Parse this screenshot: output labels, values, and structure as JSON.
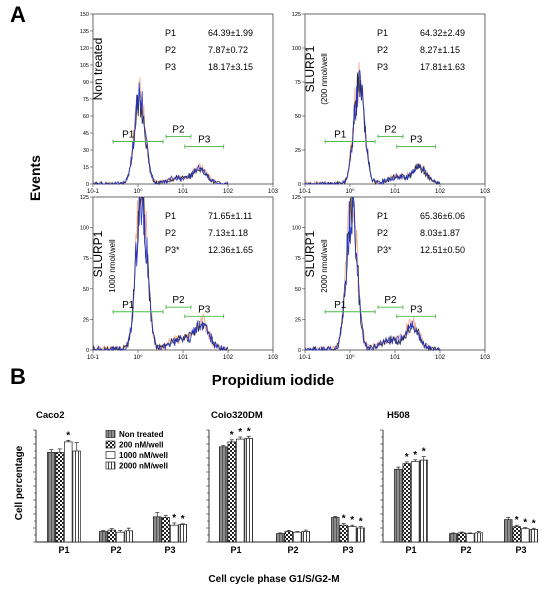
{
  "panel_labels": [
    "A",
    "B"
  ],
  "chart_data": [
    {
      "type": "line",
      "panel": "A",
      "title": "",
      "ylabel": "Events",
      "xlabel": "Propidium iodide",
      "x_scale": "log",
      "xlim": [
        0.1,
        1000
      ],
      "x_ticks": [
        "10-1",
        "10⁰",
        "101",
        "102",
        "103"
      ],
      "gates": [
        "P1",
        "P2",
        "P3"
      ],
      "histograms": [
        {
          "condition": "Non treated",
          "ylim": [
            0,
            150
          ],
          "y_ticks": [
            0,
            15,
            30,
            45,
            60,
            75,
            90,
            105,
            120,
            135,
            150
          ],
          "stats": [
            {
              "gate": "P1",
              "value": "64.39±1.99"
            },
            {
              "gate": "P2",
              "value": "7.87±0.72"
            },
            {
              "gate": "P3",
              "value": "18.17±3.15"
            }
          ],
          "peak_position": 1.1,
          "peak_height": 75
        },
        {
          "condition": "SLURP1",
          "dose": "(200 nmol/well",
          "ylim": [
            0,
            125
          ],
          "y_ticks": [
            0,
            25,
            50,
            75,
            100,
            125
          ],
          "stats": [
            {
              "gate": "P1",
              "value": "64.32±2.49"
            },
            {
              "gate": "P2",
              "value": "8.27±1.15"
            },
            {
              "gate": "P3",
              "value": "17.81±1.63"
            }
          ],
          "peak_position": 1.6,
          "peak_height": 70
        },
        {
          "condition": "SLURP1",
          "dose": "1000 nmol/well",
          "ylim": [
            0,
            125
          ],
          "y_ticks": [
            0,
            25,
            50,
            75,
            100,
            125
          ],
          "stats": [
            {
              "gate": "P1",
              "value": "71.65±1.11"
            },
            {
              "gate": "P2",
              "value": "7.13±1.18"
            },
            {
              "gate": "P3*",
              "value": "12.36±1.65"
            }
          ],
          "peak_position": 1.2,
          "peak_height": 125
        },
        {
          "condition": "SLURP1",
          "dose": "2000 nmol/well",
          "ylim": [
            0,
            125
          ],
          "y_ticks": [
            0,
            25,
            50,
            75,
            100,
            125
          ],
          "stats": [
            {
              "gate": "P1",
              "value": "65.36±6.06"
            },
            {
              "gate": "P2",
              "value": "8.03±1.87"
            },
            {
              "gate": "P3*",
              "value": "12.51±0.50"
            }
          ],
          "peak_position": 1.1,
          "peak_height": 110
        }
      ],
      "colors": {
        "blue": "#2233cc",
        "dark": "#222222",
        "peach": "#f2a27a",
        "gate": "#4cb848"
      }
    },
    {
      "type": "bar",
      "panel": "B",
      "ylabel": "Cell percentage",
      "xlabel": "Cell cycle phase G1/S/G2-M",
      "ylim": [
        0,
        80
      ],
      "categories": [
        "P1",
        "P2",
        "P3"
      ],
      "legend": [
        "Non treated",
        "200 nM/well",
        "1000 nM/well",
        "2000 nM/well"
      ],
      "legend_placement": "top-left of first plot",
      "groups": [
        {
          "name": "Caco2",
          "series": [
            {
              "name": "Non treated",
              "values": [
                64,
                7.5,
                18
              ],
              "errors": [
                2,
                0.7,
                3
              ]
            },
            {
              "name": "200 nM/well",
              "values": [
                64,
                8.5,
                17.5
              ],
              "errors": [
                2.5,
                1.1,
                1.6
              ]
            },
            {
              "name": "1000 nM/well",
              "values": [
                71.5,
                7,
                12
              ],
              "errors": [
                1.1,
                1.2,
                1.6
              ]
            },
            {
              "name": "2000 nM/well",
              "values": [
                65,
                8,
                12.5
              ],
              "errors": [
                6,
                1.9,
                0.5
              ]
            }
          ],
          "stars": [
            [
              0,
              2
            ],
            [
              2,
              2
            ],
            [
              2,
              3
            ]
          ]
        },
        {
          "name": "Colo320DM",
          "series": [
            {
              "name": "Non treated",
              "values": [
                68,
                6,
                17.5
              ],
              "errors": [
                0.8,
                0.5,
                0.8
              ]
            },
            {
              "name": "200 nM/well",
              "values": [
                71.5,
                7.5,
                12
              ],
              "errors": [
                1.5,
                0.8,
                1.2
              ]
            },
            {
              "name": "1000 nM/well",
              "values": [
                73.5,
                7,
                11
              ],
              "errors": [
                1.5,
                0.5,
                1
              ]
            },
            {
              "name": "2000 nM/well",
              "values": [
                74,
                7.5,
                10
              ],
              "errors": [
                1.5,
                1,
                1
              ]
            }
          ],
          "stars": [
            [
              0,
              1
            ],
            [
              0,
              2
            ],
            [
              0,
              3
            ],
            [
              2,
              1
            ],
            [
              2,
              2
            ],
            [
              2,
              3
            ]
          ]
        },
        {
          "name": "H508",
          "series": [
            {
              "name": "Non treated",
              "values": [
                52,
                6,
                16
              ],
              "errors": [
                1.5,
                0.5,
                1.5
              ]
            },
            {
              "name": "200 nM/well",
              "values": [
                56,
                6.5,
                11
              ],
              "errors": [
                1.2,
                0.6,
                1
              ]
            },
            {
              "name": "1000 nM/well",
              "values": [
                57.5,
                6,
                9.5
              ],
              "errors": [
                1.2,
                0.5,
                0.8
              ]
            },
            {
              "name": "2000 nM/well",
              "values": [
                58.5,
                6.5,
                9
              ],
              "errors": [
                2.5,
                1,
                0.8
              ]
            }
          ],
          "stars": [
            [
              0,
              1
            ],
            [
              0,
              2
            ],
            [
              0,
              3
            ],
            [
              2,
              1
            ],
            [
              2,
              2
            ],
            [
              2,
              3
            ]
          ]
        }
      ]
    }
  ]
}
